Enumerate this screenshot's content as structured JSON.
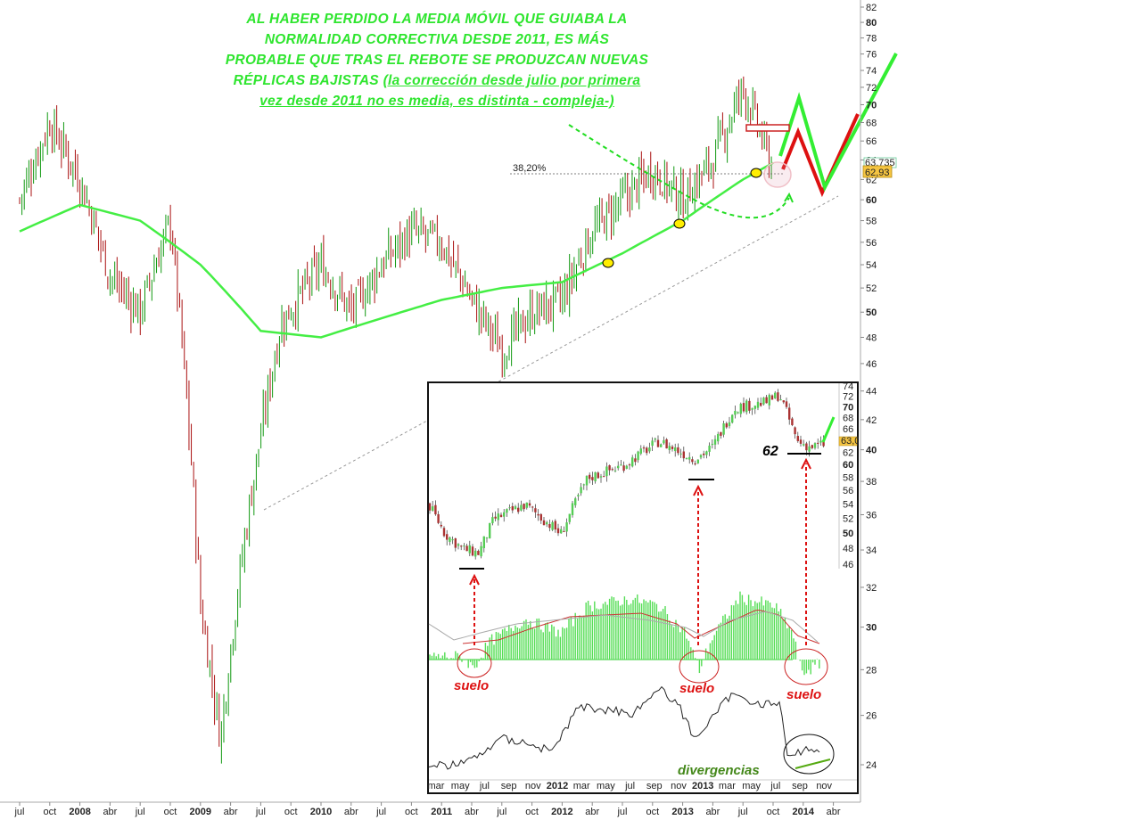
{
  "annotation": {
    "line1": "AL HABER PERDIDO LA MEDIA MÓVIL QUE GUIABA LA",
    "line2": "NORMALIDAD CORRECTIVA DESDE 2011, ES MÁS",
    "line3": "PROBABLE QUE TRAS EL REBOTE SE PRODUZCAN NUEVAS",
    "line4": "RÉPLICAS BAJISTAS",
    "line4b": "(la corrección desde julio por primera",
    "line5": "vez desde 2011 no es media, es distinta - compleja-)"
  },
  "chart_data": [
    {
      "type": "line",
      "subtype": "candlestick-with-moving-average",
      "x_ticks": [
        "jul",
        "oct",
        "2008",
        "abr",
        "jul",
        "oct",
        "2009",
        "abr",
        "jul",
        "oct",
        "2010",
        "abr",
        "jul",
        "oct",
        "2011",
        "abr",
        "jul",
        "oct",
        "2012",
        "abr",
        "jul",
        "oct",
        "2013",
        "abr",
        "jul",
        "oct",
        "2014",
        "abr"
      ],
      "x_ticks_bold": [
        "2008",
        "2009",
        "2010",
        "2011",
        "2012",
        "2013",
        "2014"
      ],
      "y_ticks": [
        82,
        80,
        78,
        76,
        74,
        72,
        70,
        68,
        66,
        64,
        62,
        60,
        58,
        56,
        54,
        52,
        50,
        48,
        46,
        44,
        42,
        40,
        38,
        36,
        34,
        32,
        30,
        28,
        26,
        24
      ],
      "y_scale": "log",
      "ylim": [
        23,
        83
      ],
      "series": [
        {
          "values_x": [
            "2007-07",
            "2007-10",
            "2008-01",
            "2008-04",
            "2008-07",
            "2008-10",
            "2009-01",
            "2009-03",
            "2009-06",
            "2009-09",
            "2010-01",
            "2010-04",
            "2010-07",
            "2010-10",
            "2011-01",
            "2011-04",
            "2011-07",
            "2011-10",
            "2012-01",
            "2012-04",
            "2012-07",
            "2012-10",
            "2013-01",
            "2013-04",
            "2013-07",
            "2013-10"
          ],
          "values": [
            60,
            68,
            62,
            53,
            50,
            58,
            31,
            25,
            37,
            49,
            54,
            50,
            54,
            57,
            56,
            51,
            47,
            50,
            51,
            57,
            60,
            63,
            60,
            64,
            72,
            62.9
          ]
        },
        {
          "values_x": [
            "2007-07",
            "2008-01",
            "2008-07",
            "2009-01",
            "2009-07",
            "2010-01",
            "2010-07",
            "2011-01",
            "2011-07",
            "2012-01",
            "2012-07",
            "2013-01",
            "2013-07",
            "2013-10"
          ],
          "values": [
            57,
            59.5,
            58,
            54,
            48.5,
            48,
            49.5,
            51,
            52,
            52.5,
            55,
            58,
            62,
            63.7
          ]
        }
      ],
      "labels": {
        "retracement": "38,20%",
        "last_value": "62,93",
        "ma_value": "63,735"
      }
    },
    {
      "type": "line",
      "subtype": "inset-price-histogram-oscillator",
      "x_ticks": [
        "mar",
        "may",
        "jul",
        "sep",
        "nov",
        "2012",
        "mar",
        "may",
        "jul",
        "sep",
        "nov",
        "2013",
        "mar",
        "may",
        "jul",
        "sep",
        "nov"
      ],
      "y_ticks": [
        74,
        72,
        70,
        68,
        66,
        64,
        62,
        60,
        58,
        56,
        54,
        52,
        50,
        48,
        46
      ],
      "value_box": "63,0",
      "annotations": [
        "62",
        "suelo",
        "suelo",
        "suelo",
        "divergencias"
      ]
    }
  ]
}
